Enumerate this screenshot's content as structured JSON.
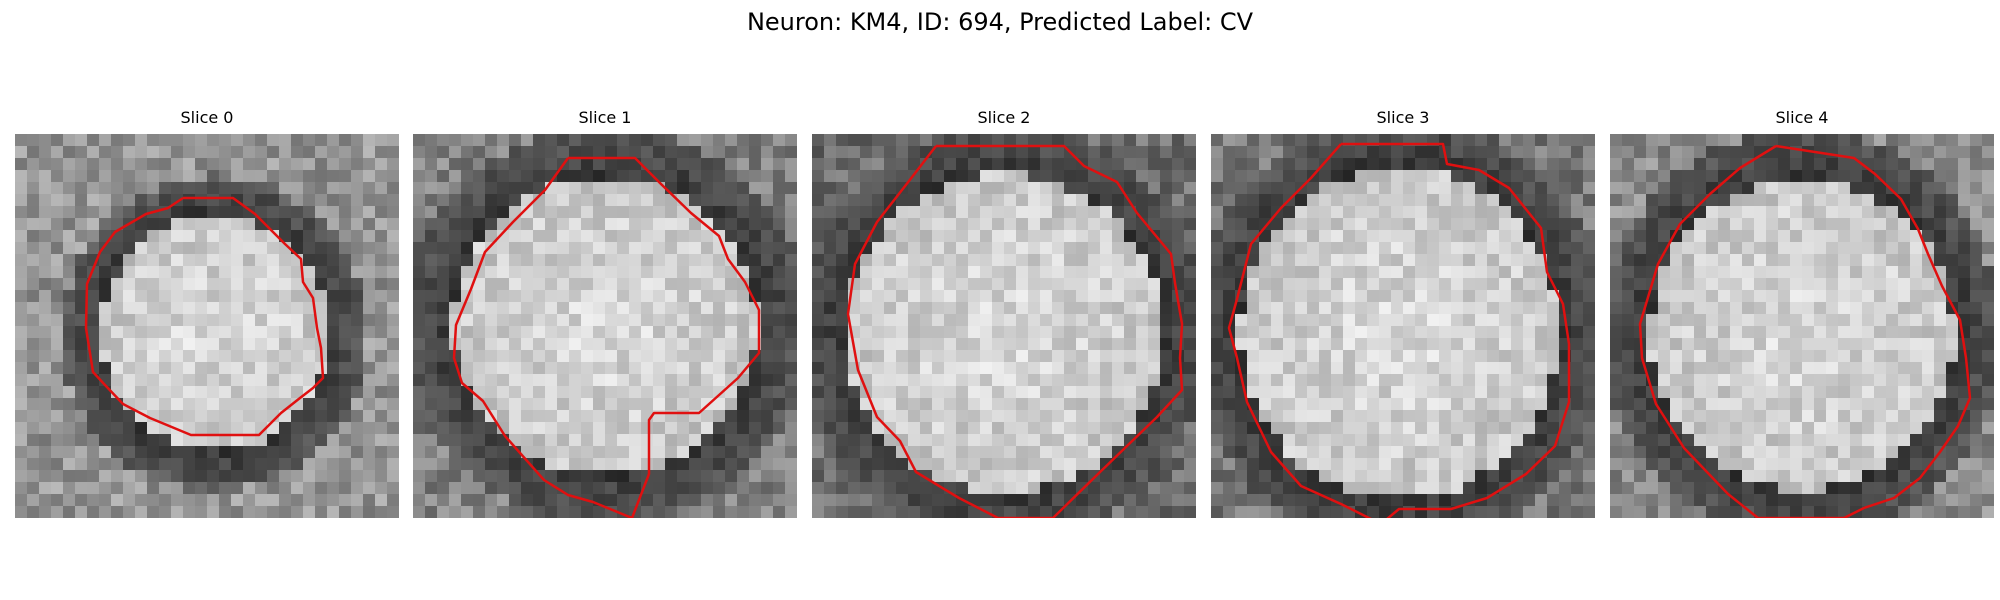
{
  "figure": {
    "title": "Neuron: KM4, ID: 694, Predicted Label: CV",
    "contour_color": "#e01010"
  },
  "slices": [
    {
      "title": "Slice 0"
    },
    {
      "title": "Slice 1"
    },
    {
      "title": "Slice 2"
    },
    {
      "title": "Slice 3"
    },
    {
      "title": "Slice 4"
    }
  ]
}
